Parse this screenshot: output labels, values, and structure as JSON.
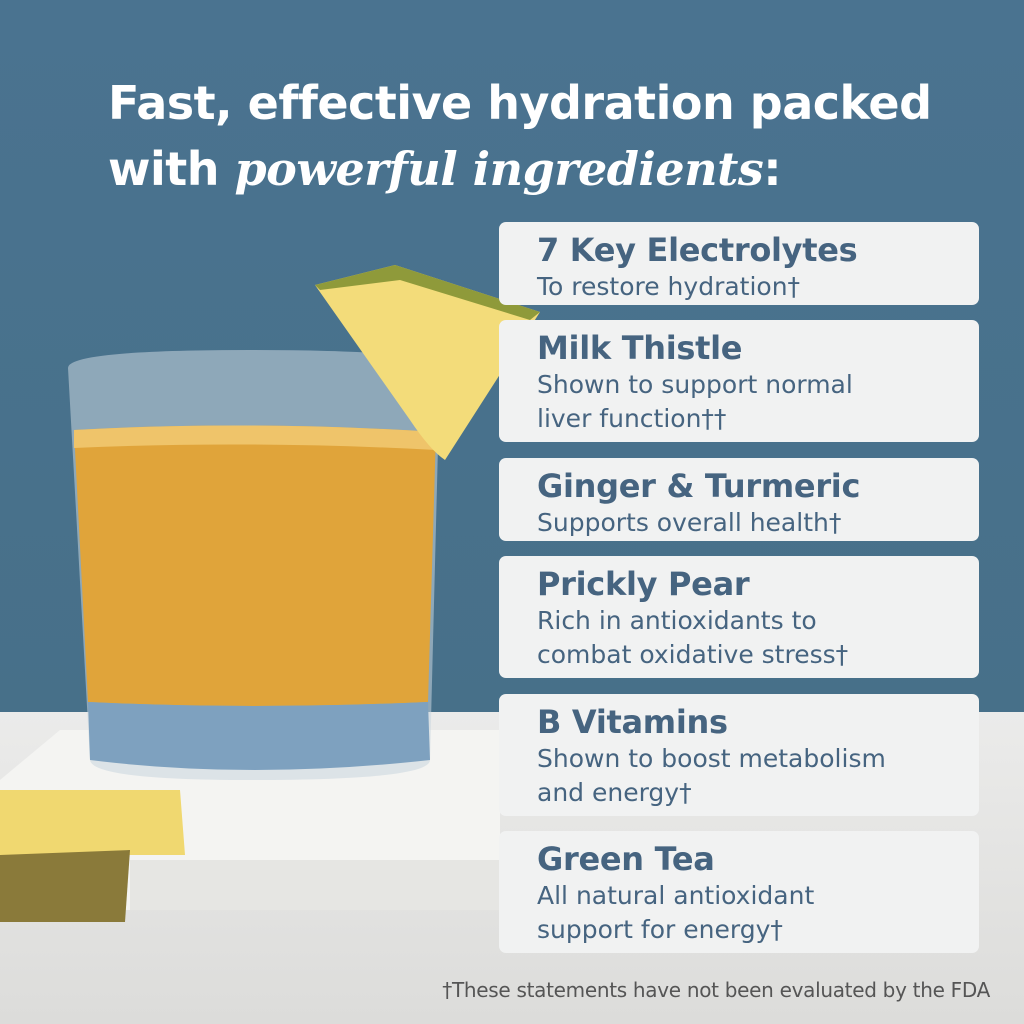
{
  "headline": {
    "line1": "Fast, effective hydration packed",
    "line2_prefix": "with ",
    "line2_emphasis": "powerful ingredients",
    "line2_suffix": ":"
  },
  "ingredients": [
    {
      "title": "7 Key Electrolytes",
      "description": "To restore hydration†"
    },
    {
      "title": "Milk Thistle",
      "description": "Shown to support normal\nliver function††"
    },
    {
      "title": "Ginger & Turmeric",
      "description": "Supports overall health†"
    },
    {
      "title": "Prickly Pear",
      "description": "Rich in antioxidants to\ncombat oxidative stress†"
    },
    {
      "title": "B Vitamins",
      "description": "Shown to boost metabolism\nand energy†"
    },
    {
      "title": "Green Tea",
      "description": "All natural antioxidant\nsupport for energy†"
    }
  ],
  "footnote": "†These statements have not been evaluated by the FDA",
  "colors": {
    "background": "#4a7390",
    "card": "#f1f2f2",
    "card_text": "#466480",
    "headline": "#ffffff"
  }
}
